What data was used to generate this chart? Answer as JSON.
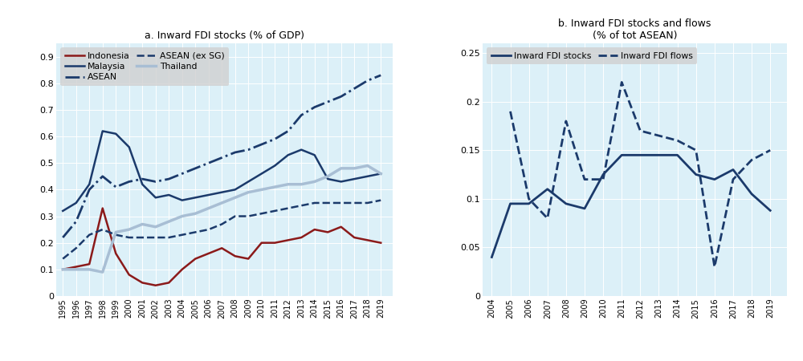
{
  "panel_a": {
    "title": "a. Inward FDI stocks (% of GDP)",
    "years": [
      1995,
      1996,
      1997,
      1998,
      1999,
      2000,
      2001,
      2002,
      2003,
      2004,
      2005,
      2006,
      2007,
      2008,
      2009,
      2010,
      2011,
      2012,
      2013,
      2014,
      2015,
      2016,
      2017,
      2018,
      2019
    ],
    "indonesia": [
      0.1,
      0.11,
      0.12,
      0.33,
      0.16,
      0.08,
      0.05,
      0.04,
      0.05,
      0.1,
      0.14,
      0.16,
      0.18,
      0.15,
      0.14,
      0.2,
      0.2,
      0.21,
      0.22,
      0.25,
      0.24,
      0.26,
      0.22,
      0.21,
      0.2
    ],
    "malaysia": [
      0.32,
      0.35,
      0.42,
      0.62,
      0.61,
      0.56,
      0.42,
      0.37,
      0.38,
      0.36,
      0.37,
      0.38,
      0.39,
      0.4,
      0.43,
      0.46,
      0.49,
      0.53,
      0.55,
      0.53,
      0.44,
      0.43,
      0.44,
      0.45,
      0.46
    ],
    "asean": [
      0.22,
      0.28,
      0.4,
      0.45,
      0.41,
      0.43,
      0.44,
      0.43,
      0.44,
      0.46,
      0.48,
      0.5,
      0.52,
      0.54,
      0.55,
      0.57,
      0.59,
      0.62,
      0.68,
      0.71,
      0.73,
      0.75,
      0.78,
      0.81,
      0.83
    ],
    "asean_ex_sg": [
      0.14,
      0.18,
      0.23,
      0.25,
      0.23,
      0.22,
      0.22,
      0.22,
      0.22,
      0.23,
      0.24,
      0.25,
      0.27,
      0.3,
      0.3,
      0.31,
      0.32,
      0.33,
      0.34,
      0.35,
      0.35,
      0.35,
      0.35,
      0.35,
      0.36
    ],
    "thailand": [
      0.1,
      0.1,
      0.1,
      0.09,
      0.24,
      0.25,
      0.27,
      0.26,
      0.28,
      0.3,
      0.31,
      0.33,
      0.35,
      0.37,
      0.39,
      0.4,
      0.41,
      0.42,
      0.42,
      0.43,
      0.45,
      0.48,
      0.48,
      0.49,
      0.46
    ],
    "ylim": [
      0,
      0.95
    ],
    "yticks": [
      0,
      0.1,
      0.2,
      0.3,
      0.4,
      0.5,
      0.6,
      0.7,
      0.8,
      0.9
    ],
    "ytick_labels": [
      "0",
      "0.1",
      "0.2",
      "0.3",
      "0.4",
      "0.5",
      "0.6",
      "0.7",
      "0.8",
      "0.9"
    ],
    "legend_items": [
      {
        "label": "Indonesia",
        "color": "#8B1A1A",
        "lw": 1.8,
        "ls": "solid"
      },
      {
        "label": "Malaysia",
        "color": "#1B3A6B",
        "lw": 1.8,
        "ls": "solid"
      },
      {
        "label": "ASEAN",
        "color": "#1B3A6B",
        "lw": 2.0,
        "ls": "dashdot"
      },
      {
        "label": "ASEAN (ex SG)",
        "color": "#1B3A6B",
        "lw": 1.8,
        "ls": "dashed"
      },
      {
        "label": "Thailand",
        "color": "#A8BED4",
        "lw": 2.5,
        "ls": "solid"
      }
    ]
  },
  "panel_b": {
    "title": "b. Inward FDI stocks and flows\n(% of tot ASEAN)",
    "years": [
      2004,
      2005,
      2006,
      2007,
      2008,
      2009,
      2010,
      2011,
      2012,
      2013,
      2014,
      2015,
      2016,
      2017,
      2018,
      2019
    ],
    "fdi_stocks": [
      0.04,
      0.095,
      0.095,
      0.11,
      0.095,
      0.09,
      0.125,
      0.145,
      0.145,
      0.145,
      0.145,
      0.125,
      0.12,
      0.13,
      0.105,
      0.088
    ],
    "fdi_flows": [
      null,
      0.19,
      0.1,
      0.08,
      0.18,
      0.12,
      0.12,
      0.22,
      0.17,
      0.165,
      0.16,
      0.15,
      0.03,
      0.12,
      0.14,
      0.15
    ],
    "ylim": [
      0,
      0.26
    ],
    "yticks": [
      0,
      0.05,
      0.1,
      0.15,
      0.2,
      0.25
    ],
    "ytick_labels": [
      "0",
      "0.05",
      "0.1",
      "0.15",
      "0.2",
      "0.25"
    ],
    "legend_items": [
      {
        "label": "Inward FDI stocks",
        "color": "#1B3A6B",
        "lw": 2.0,
        "ls": "solid"
      },
      {
        "label": "Inward FDI flows",
        "color": "#1B3A6B",
        "lw": 2.0,
        "ls": "dashed"
      }
    ]
  },
  "background_color": "#DCF0F8",
  "legend_bg_color": "#D0D0D0",
  "fig_bg_color": "#FFFFFF"
}
